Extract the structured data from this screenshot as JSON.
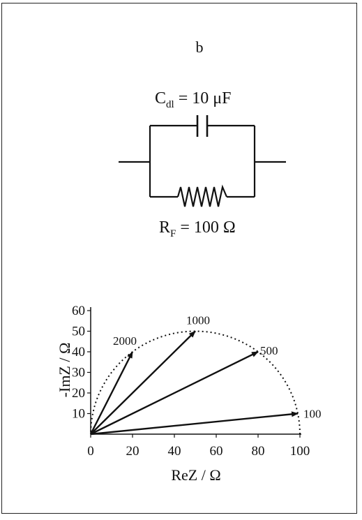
{
  "panel_label": "b",
  "circuit": {
    "capacitor_symbol": "C",
    "capacitor_subscript": "dl",
    "capacitor_value": " = 10 μF",
    "resistor_symbol": "R",
    "resistor_subscript": "F",
    "resistor_value": " = 100 Ω"
  },
  "chart_data": {
    "type": "scatter",
    "title": "",
    "xlabel": "ReZ / Ω",
    "ylabel": "-ImZ / Ω",
    "xlim": [
      0,
      100
    ],
    "ylim": [
      0,
      60
    ],
    "x_ticks": [
      "0",
      "20",
      "40",
      "60",
      "80",
      "100"
    ],
    "y_ticks": [
      "10",
      "20",
      "30",
      "40",
      "50",
      "60"
    ],
    "semicircle": {
      "center": 50,
      "radius": 50,
      "style": "dotted"
    },
    "vectors": [
      {
        "label": "2000",
        "x": 20,
        "y": 40
      },
      {
        "label": "1000",
        "x": 50,
        "y": 50
      },
      {
        "label": "500",
        "x": 80,
        "y": 40
      },
      {
        "label": "100",
        "x": 99,
        "y": 10
      }
    ],
    "grid": false
  }
}
